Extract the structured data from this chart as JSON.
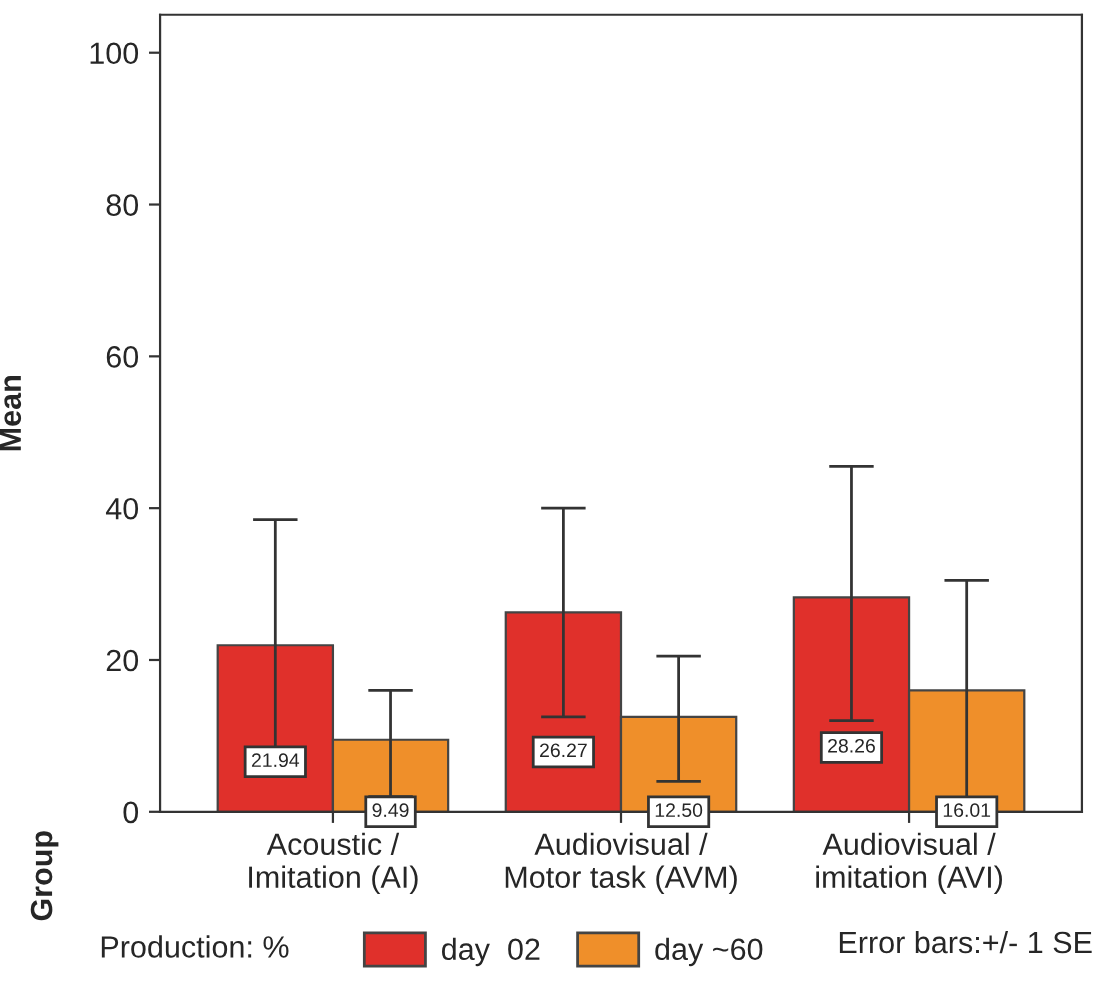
{
  "chart_data": {
    "type": "bar",
    "ylabel": "Mean",
    "legend_title": "Production: %",
    "categories": [
      "Acoustic /\nImitation (AI)",
      "Audiovisual /\nMotor task (AVM)",
      "Audiovisual /\nimitation (AVI)"
    ],
    "series": [
      {
        "name": "day  02",
        "color": "#e0302b",
        "values": [
          21.94,
          26.27,
          28.26
        ],
        "value_labels": [
          "21.94",
          "26.27",
          "28.26"
        ],
        "errors": [
          [
            5.5,
            38.5
          ],
          [
            12.5,
            40
          ],
          [
            12,
            45.5
          ]
        ]
      },
      {
        "name": "day ~60",
        "color": "#ef8f2a",
        "values": [
          9.49,
          12.5,
          16.01
        ],
        "value_labels": [
          "9.49",
          "12.50",
          "16.01"
        ],
        "errors": [
          [
            2,
            16
          ],
          [
            4,
            20.5
          ],
          [
            1.5,
            30.5
          ]
        ]
      }
    ],
    "ylim": [
      0,
      105
    ],
    "yticks": [
      0,
      20,
      40,
      60,
      80,
      100
    ],
    "grid": false,
    "legend": "bottom",
    "annotations": [
      "Group",
      "Error bars:+/- 1 SE"
    ]
  }
}
